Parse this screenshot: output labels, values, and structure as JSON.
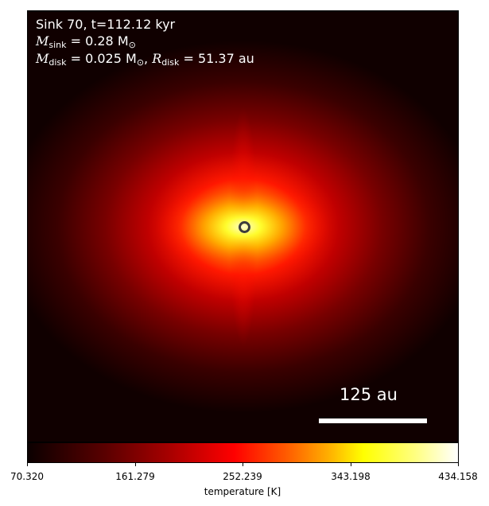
{
  "annotations": {
    "line1": "Sink 70, t=112.12 kyr",
    "sink_mass_symbol": "M",
    "sink_mass_sub": "sink",
    "sink_mass_value": " = 0.28 M",
    "sink_mass_unit_sub": "⊙",
    "disk_mass_symbol": "M",
    "disk_mass_sub": "disk",
    "disk_mass_value": " = 0.025 M",
    "disk_mass_unit_sub": "⊙",
    "disk_mass_sep": ", ",
    "disk_radius_symbol": "R",
    "disk_radius_sub": "disk",
    "disk_radius_value": " = 51.37 au"
  },
  "scalebar": {
    "label": "125 au"
  },
  "colorbar": {
    "label": "temperature [K]",
    "colormap": "hot",
    "min": 70.32,
    "max": 434.158,
    "ticks": [
      "70.320",
      "161.279",
      "252.239",
      "343.198",
      "434.158"
    ]
  },
  "colors": {
    "background": "#000000",
    "text": "#ffffff",
    "marker": "#3d3d3d"
  }
}
